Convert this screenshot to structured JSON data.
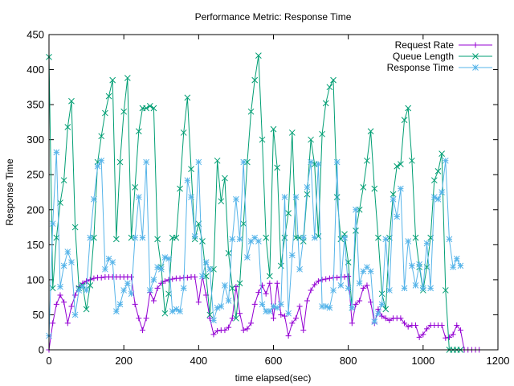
{
  "chart_data": {
    "type": "line",
    "title": "Performance Metric: Response Time",
    "xlabel": "time elapsed(sec)",
    "ylabel": "Response Time",
    "xlim": [
      0,
      1200
    ],
    "ylim": [
      0,
      450
    ],
    "xticks": [
      0,
      200,
      400,
      600,
      800,
      1000,
      1200
    ],
    "yticks": [
      0,
      50,
      100,
      150,
      200,
      250,
      300,
      350,
      400,
      450
    ],
    "grid": false,
    "legend_position": "top-right",
    "series": [
      {
        "name": "Request Rate",
        "color": "#9400d3",
        "marker": "plus",
        "x": [
          0,
          10,
          20,
          30,
          40,
          50,
          60,
          70,
          80,
          90,
          100,
          110,
          120,
          130,
          140,
          150,
          160,
          170,
          180,
          190,
          200,
          210,
          220,
          230,
          240,
          250,
          260,
          270,
          280,
          290,
          300,
          310,
          320,
          330,
          340,
          350,
          360,
          370,
          380,
          390,
          400,
          410,
          420,
          430,
          440,
          450,
          460,
          470,
          480,
          490,
          500,
          510,
          520,
          530,
          540,
          550,
          560,
          570,
          580,
          590,
          600,
          610,
          620,
          630,
          640,
          650,
          660,
          670,
          680,
          690,
          700,
          710,
          720,
          730,
          740,
          750,
          760,
          770,
          780,
          790,
          800,
          810,
          820,
          830,
          840,
          850,
          860,
          870,
          880,
          890,
          900,
          910,
          920,
          930,
          940,
          950,
          960,
          970,
          980,
          990,
          1000,
          1010,
          1020,
          1030,
          1040,
          1050,
          1060,
          1070,
          1080,
          1090,
          1100,
          1110,
          1120,
          1130,
          1140,
          1150
        ],
        "values": [
          0,
          38,
          65,
          78,
          68,
          38,
          62,
          78,
          90,
          95,
          98,
          100,
          102,
          103,
          103,
          104,
          104,
          104,
          104,
          104,
          104,
          104,
          104,
          65,
          45,
          28,
          45,
          82,
          70,
          88,
          95,
          98,
          100,
          101,
          102,
          102,
          103,
          103,
          104,
          104,
          68,
          105,
          78,
          45,
          22,
          27,
          28,
          28,
          32,
          45,
          90,
          52,
          28,
          30,
          38,
          65,
          82,
          92,
          80,
          95,
          45,
          95,
          50,
          48,
          20,
          38,
          45,
          62,
          28,
          70,
          85,
          93,
          98,
          100,
          101,
          102,
          103,
          103,
          104,
          104,
          105,
          38,
          65,
          70,
          88,
          92,
          68,
          38,
          58,
          48,
          45,
          42,
          45,
          45,
          45,
          38,
          33,
          35,
          35,
          18,
          22,
          30,
          35,
          35,
          35,
          35,
          17,
          18,
          22,
          35,
          28,
          0,
          0,
          0,
          0,
          0
        ]
      },
      {
        "name": "Queue Length",
        "color": "#009e73",
        "marker": "cross",
        "x": [
          0,
          10,
          20,
          30,
          40,
          50,
          60,
          70,
          80,
          90,
          100,
          110,
          120,
          130,
          140,
          150,
          160,
          170,
          180,
          190,
          200,
          210,
          220,
          230,
          240,
          250,
          260,
          270,
          280,
          290,
          300,
          310,
          320,
          330,
          340,
          350,
          360,
          370,
          380,
          390,
          400,
          410,
          420,
          430,
          440,
          450,
          460,
          470,
          480,
          490,
          500,
          510,
          520,
          530,
          540,
          550,
          560,
          570,
          580,
          590,
          600,
          610,
          620,
          630,
          640,
          650,
          660,
          670,
          680,
          690,
          700,
          710,
          720,
          730,
          740,
          750,
          760,
          770,
          780,
          790,
          800,
          810,
          820,
          830,
          840,
          850,
          860,
          870,
          880,
          890,
          900,
          910,
          920,
          930,
          940,
          950,
          960,
          970,
          980,
          990,
          1000,
          1010,
          1020,
          1030,
          1040,
          1050,
          1060,
          1070,
          1080,
          1090,
          1100
        ],
        "values": [
          418,
          88,
          160,
          210,
          242,
          318,
          355,
          175,
          88,
          92,
          58,
          92,
          160,
          268,
          305,
          338,
          362,
          385,
          158,
          268,
          340,
          388,
          160,
          232,
          312,
          345,
          345,
          348,
          345,
          158,
          118,
          52,
          80,
          160,
          160,
          230,
          310,
          360,
          258,
          158,
          180,
          155,
          105,
          50,
          115,
          270,
          212,
          245,
          138,
          88,
          45,
          95,
          180,
          268,
          340,
          385,
          420,
          300,
          160,
          105,
          315,
          260,
          120,
          160,
          195,
          310,
          160,
          160,
          155,
          222,
          300,
          265,
          162,
          308,
          352,
          375,
          385,
          218,
          158,
          165,
          125,
          60,
          170,
          200,
          232,
          270,
          312,
          230,
          160,
          80,
          58,
          160,
          222,
          262,
          265,
          328,
          345,
          270,
          160,
          118,
          85,
          118,
          160,
          242,
          255,
          280,
          85,
          0,
          0,
          0,
          0
        ]
      },
      {
        "name": "Response Time",
        "color": "#56b4e9",
        "marker": "star",
        "x": [
          0,
          10,
          20,
          30,
          40,
          50,
          60,
          70,
          80,
          90,
          100,
          110,
          120,
          130,
          140,
          150,
          160,
          170,
          180,
          190,
          200,
          210,
          220,
          230,
          240,
          250,
          260,
          270,
          280,
          290,
          300,
          310,
          320,
          330,
          340,
          350,
          360,
          370,
          380,
          390,
          400,
          410,
          420,
          430,
          440,
          450,
          460,
          470,
          480,
          490,
          500,
          510,
          520,
          530,
          540,
          550,
          560,
          570,
          580,
          590,
          600,
          610,
          620,
          630,
          640,
          650,
          660,
          670,
          680,
          690,
          700,
          710,
          720,
          730,
          740,
          750,
          760,
          770,
          780,
          790,
          800,
          810,
          820,
          830,
          840,
          850,
          860,
          870,
          880,
          890,
          900,
          910,
          920,
          930,
          940,
          950,
          960,
          970,
          980,
          990,
          1000,
          1010,
          1020,
          1030,
          1040,
          1050,
          1060,
          1070,
          1080,
          1090,
          1100
        ],
        "values": [
          20,
          180,
          282,
          90,
          120,
          140,
          125,
          50,
          85,
          90,
          85,
          160,
          215,
          262,
          270,
          115,
          130,
          125,
          55,
          65,
          85,
          95,
          80,
          160,
          218,
          160,
          268,
          85,
          100,
          118,
          115,
          132,
          130,
          55,
          58,
          55,
          88,
          242,
          218,
          162,
          268,
          105,
          125,
          115,
          42,
          60,
          62,
          92,
          70,
          158,
          215,
          158,
          268,
          132,
          155,
          160,
          155,
          65,
          55,
          55,
          62,
          60,
          65,
          218,
          52,
          135,
          218,
          115,
          160,
          232,
          268,
          160,
          265,
          62,
          62,
          60,
          85,
          268,
          92,
          160,
          88,
          60,
          200,
          95,
          112,
          118,
          112,
          40,
          52,
          65,
          158,
          85,
          215,
          190,
          230,
          88,
          155,
          120,
          92,
          122,
          88,
          152,
          88,
          218,
          215,
          225,
          270,
          158,
          118,
          130,
          120
        ]
      }
    ]
  }
}
